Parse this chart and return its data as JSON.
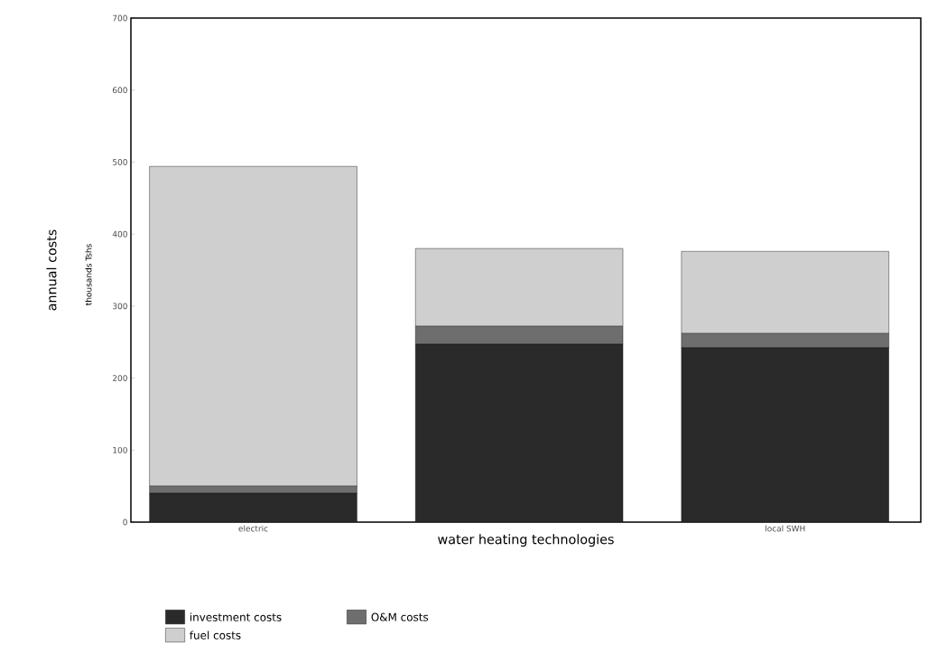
{
  "chart_data": {
    "type": "bar",
    "stacked": true,
    "categories": [
      "electric",
      null,
      "local SWH"
    ],
    "series": [
      {
        "name": "investment costs",
        "color": "#2a2a2a",
        "values": [
          40,
          247,
          242
        ]
      },
      {
        "name": "O&M costs",
        "color": "#6e6e6e",
        "values": [
          10,
          25,
          20
        ]
      },
      {
        "name": "fuel costs",
        "color": "#cfcfcf",
        "values": [
          444,
          108,
          114
        ]
      }
    ],
    "xlabel": "water heating technologies",
    "ylabel": "annual costs",
    "annotations": [
      "thousands Tshs"
    ],
    "ylim": [
      0,
      700
    ],
    "yticks": [
      0,
      100,
      200,
      300,
      400,
      500,
      600,
      700
    ],
    "grid": false,
    "legend": "bottom left"
  }
}
